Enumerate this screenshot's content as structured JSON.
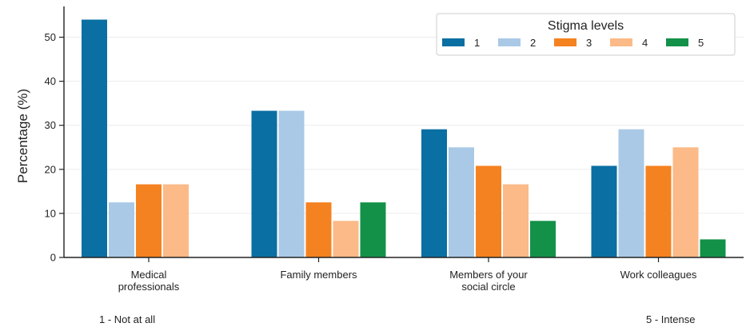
{
  "chart_data": {
    "type": "bar",
    "ylabel": "Percentage (%)",
    "ylim": [
      0,
      57
    ],
    "yticks": [
      0,
      10,
      20,
      30,
      40,
      50
    ],
    "grid": "horizontal",
    "categories": [
      [
        "Medical",
        "professionals"
      ],
      [
        "Family members"
      ],
      [
        "Members of your",
        "social circle"
      ],
      [
        "Work colleagues"
      ]
    ],
    "series": [
      {
        "name": "1",
        "color": "#0a6fa3",
        "values": [
          54,
          33.3,
          29.1,
          20.8
        ]
      },
      {
        "name": "2",
        "color": "#a9c9e6",
        "values": [
          12.5,
          33.3,
          25,
          29.1
        ]
      },
      {
        "name": "3",
        "color": "#f58220",
        "values": [
          16.6,
          12.5,
          20.8,
          20.8
        ]
      },
      {
        "name": "4",
        "color": "#fbba87",
        "values": [
          16.6,
          8.3,
          16.6,
          25
        ]
      },
      {
        "name": "5",
        "color": "#139148",
        "values": [
          0,
          12.5,
          8.3,
          4.1
        ]
      }
    ],
    "legend": {
      "title": "Stigma levels",
      "placement": "top-right",
      "orientation": "horizontal"
    }
  },
  "notes": {
    "left": "1 - Not at all",
    "right": "5 - Intense"
  }
}
